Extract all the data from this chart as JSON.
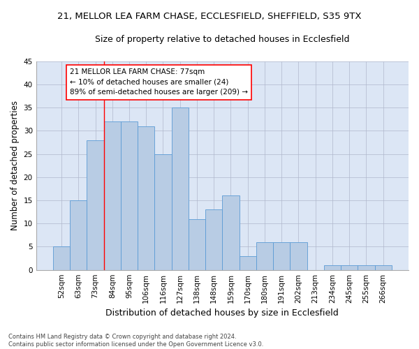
{
  "title_line1": "21, MELLOR LEA FARM CHASE, ECCLESFIELD, SHEFFIELD, S35 9TX",
  "title_line2": "Size of property relative to detached houses in Ecclesfield",
  "xlabel": "Distribution of detached houses by size in Ecclesfield",
  "ylabel": "Number of detached properties",
  "categories": [
    "52sqm",
    "63sqm",
    "73sqm",
    "84sqm",
    "95sqm",
    "106sqm",
    "116sqm",
    "127sqm",
    "138sqm",
    "148sqm",
    "159sqm",
    "170sqm",
    "180sqm",
    "191sqm",
    "202sqm",
    "213sqm",
    "234sqm",
    "245sqm",
    "255sqm",
    "266sqm"
  ],
  "values": [
    5,
    15,
    28,
    32,
    32,
    31,
    25,
    35,
    11,
    13,
    16,
    3,
    6,
    6,
    6,
    0,
    1,
    1,
    1,
    1
  ],
  "bar_color": "#b8cce4",
  "bar_edge_color": "#5b9bd5",
  "ylim": [
    0,
    45
  ],
  "yticks": [
    0,
    5,
    10,
    15,
    20,
    25,
    30,
    35,
    40,
    45
  ],
  "annotation_text_line1": "21 MELLOR LEA FARM CHASE: 77sqm",
  "annotation_text_line2": "← 10% of detached houses are smaller (24)",
  "annotation_text_line3": "89% of semi-detached houses are larger (209) →",
  "vline_x_index": 2.5,
  "footer_line1": "Contains HM Land Registry data © Crown copyright and database right 2024.",
  "footer_line2": "Contains public sector information licensed under the Open Government Licence v3.0.",
  "background_color": "#dce6f5",
  "grid_color": "#b0b8cc",
  "title1_fontsize": 9.5,
  "title2_fontsize": 9,
  "tick_fontsize": 7.5,
  "ylabel_fontsize": 8.5,
  "xlabel_fontsize": 9,
  "annotation_fontsize": 7.5,
  "footer_fontsize": 6
}
